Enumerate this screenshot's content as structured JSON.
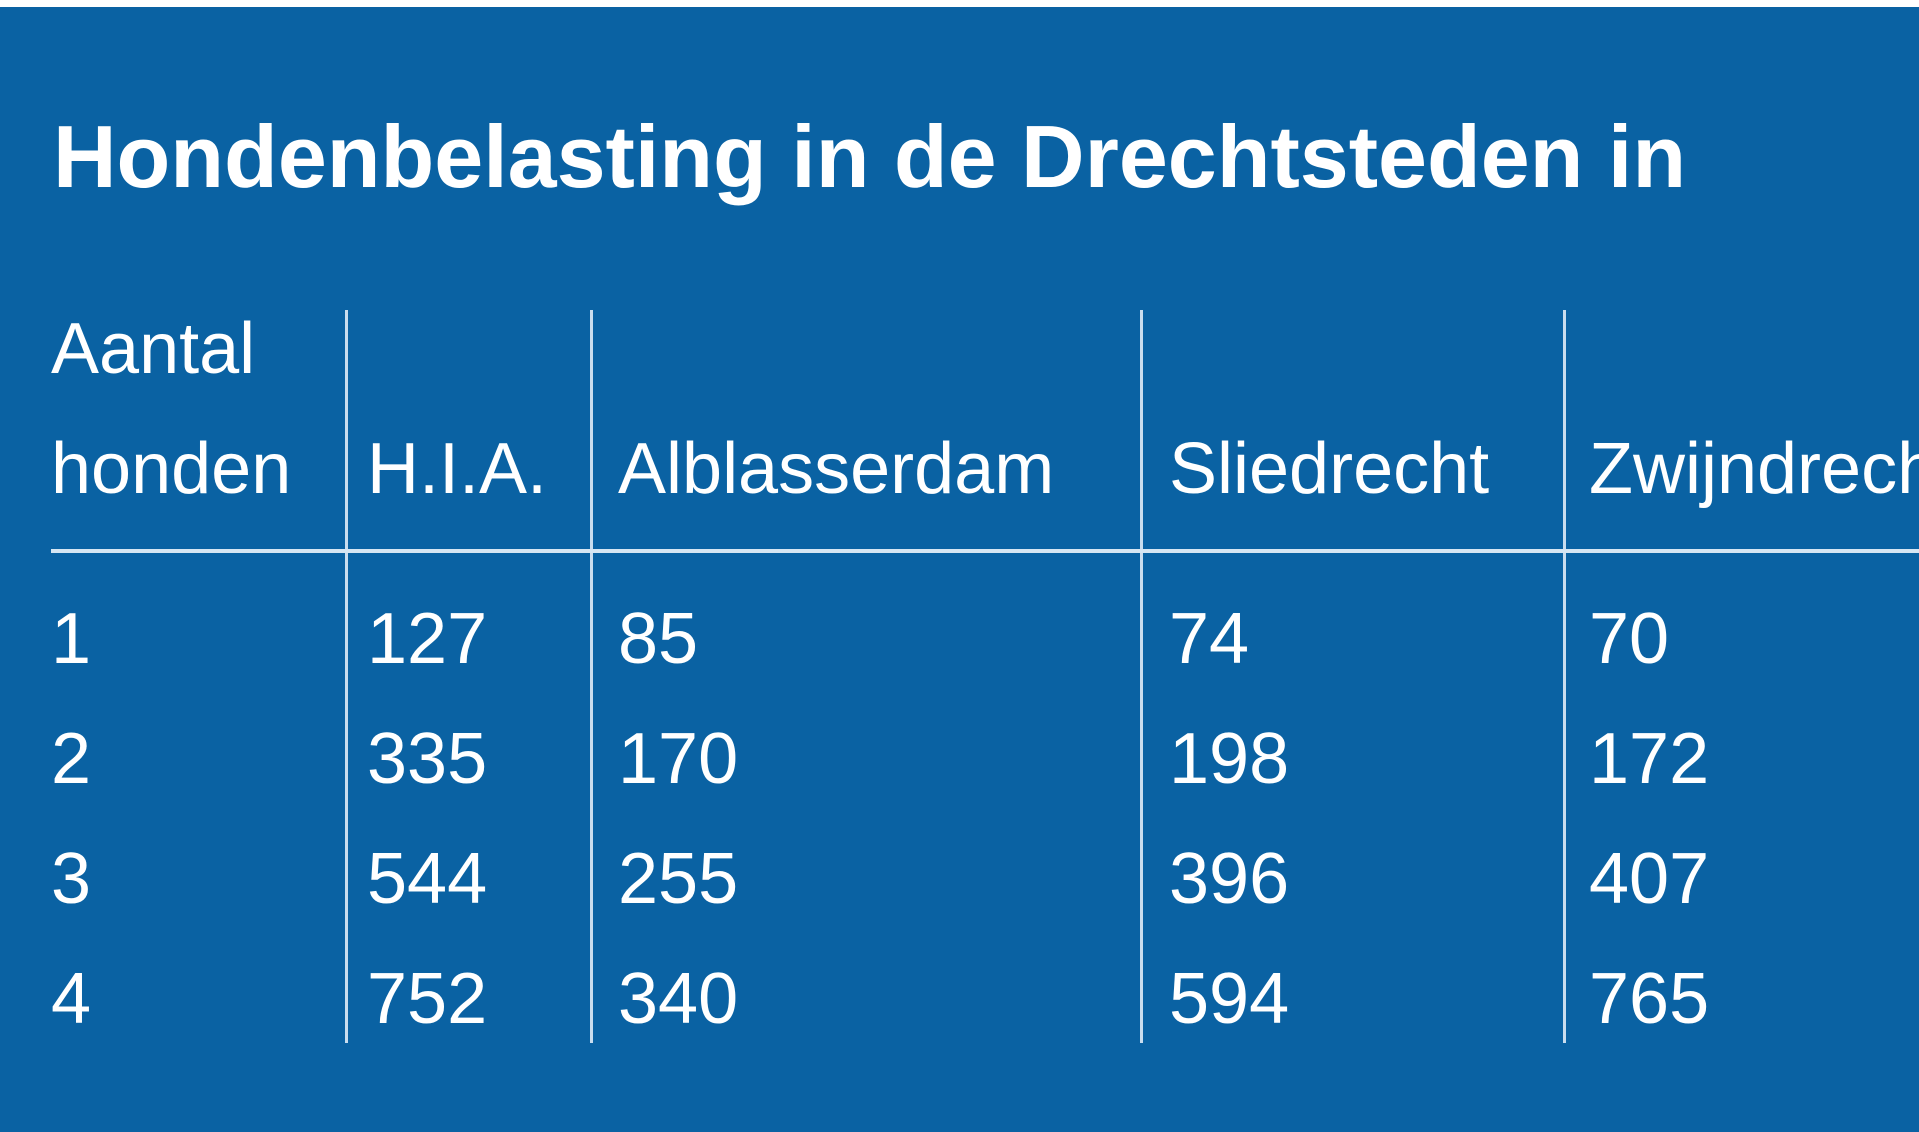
{
  "title": "Hondenbelasting in de Drechtsteden in",
  "table": {
    "header": [
      "Aantal honden",
      "H.I.A.",
      "Alblasserdam",
      "Sliedrecht",
      "Zwijndrecht"
    ],
    "rows": [
      [
        "1",
        "127",
        "85",
        "74",
        "70"
      ],
      [
        "2",
        "335",
        "170",
        "198",
        "172"
      ],
      [
        "3",
        "544",
        "255",
        "396",
        "407"
      ],
      [
        "4",
        "752",
        "340",
        "594",
        "765"
      ]
    ]
  }
}
